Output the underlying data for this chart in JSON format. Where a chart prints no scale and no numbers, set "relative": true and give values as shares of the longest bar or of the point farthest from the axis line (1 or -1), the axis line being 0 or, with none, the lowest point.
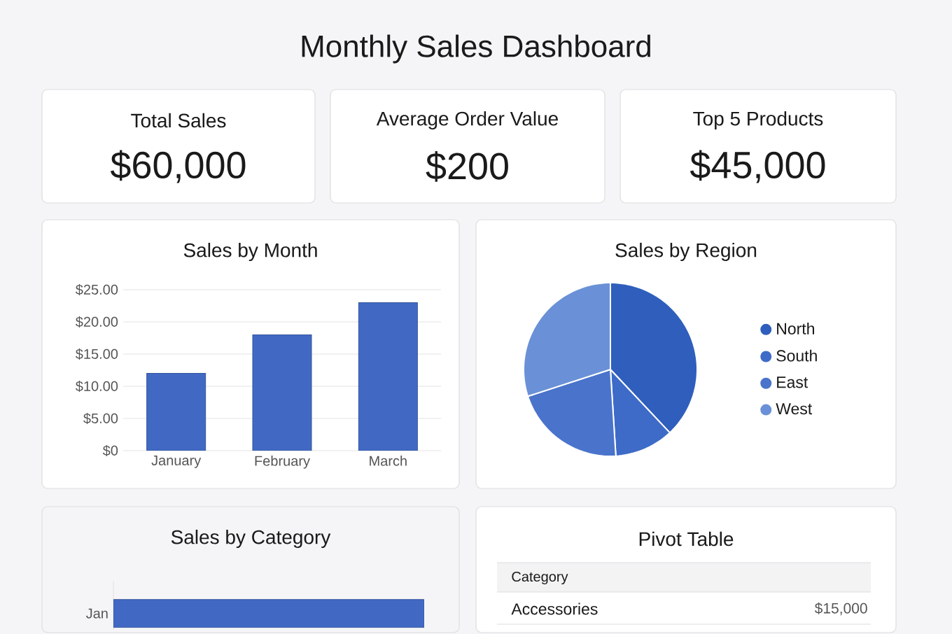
{
  "chart_data": [
    {
      "type": "other",
      "title": "Monthly Sales Dashboard"
    },
    {
      "type": "other",
      "title": "Total Sales",
      "annotations": [
        "$60,000"
      ]
    },
    {
      "type": "other",
      "title": "Average Order Value",
      "annotations": [
        "$200"
      ]
    },
    {
      "type": "other",
      "title": "Top 5 Products",
      "annotations": [
        "$45,000"
      ]
    },
    {
      "type": "bar",
      "title": "Sales by Month",
      "categories": [
        "January",
        "February",
        "March"
      ],
      "values": [
        12,
        18,
        23
      ],
      "color": "#4169c4",
      "ylim": [
        0,
        25
      ],
      "yticks": [
        {
          "value": 0,
          "label": "$0"
        },
        {
          "value": 5,
          "label": "$5.00"
        },
        {
          "value": 10,
          "label": "$10.00"
        },
        {
          "value": 15,
          "label": "$15.00"
        },
        {
          "value": 20,
          "label": "$20.00"
        },
        {
          "value": 25,
          "label": "$25.00"
        }
      ],
      "grid": "y"
    },
    {
      "type": "pie",
      "title": "Sales by Region",
      "categories": [
        "North",
        "South",
        "East",
        "West"
      ],
      "values": [
        38,
        11,
        21,
        30
      ],
      "colors": [
        "#2f5ebd",
        "#3e6bc8",
        "#4a74cb",
        "#6a91d7"
      ],
      "legend": "right"
    },
    {
      "type": "bar",
      "title": "Sales by Category",
      "orientation": "horizontal",
      "relative": true,
      "categories": [
        "Jan"
      ],
      "values": [
        1
      ],
      "color": "#4169c4"
    },
    {
      "type": "other",
      "title": "Pivot Table",
      "annotations": [
        "Category",
        "Accessories",
        "$15,000"
      ]
    }
  ]
}
